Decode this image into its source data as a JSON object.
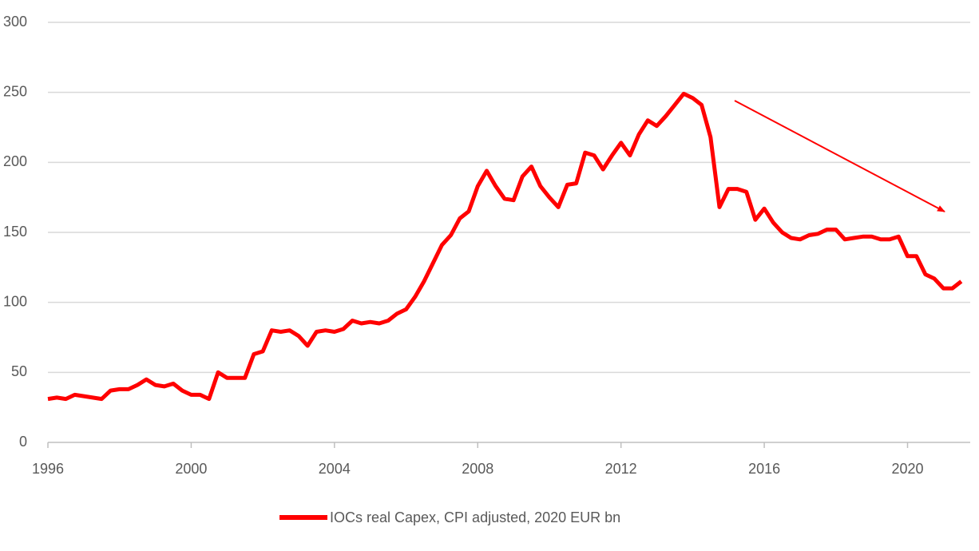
{
  "chart_data": {
    "type": "line",
    "x": [
      1996,
      1996.25,
      1996.5,
      1996.75,
      1997,
      1997.25,
      1997.5,
      1997.75,
      1998,
      1998.25,
      1998.5,
      1998.75,
      1999,
      1999.25,
      1999.5,
      1999.75,
      2000,
      2000.25,
      2000.5,
      2000.75,
      2001,
      2001.25,
      2001.5,
      2001.75,
      2002,
      2002.25,
      2002.5,
      2002.75,
      2003,
      2003.25,
      2003.5,
      2003.75,
      2004,
      2004.25,
      2004.5,
      2004.75,
      2005,
      2005.25,
      2005.5,
      2005.75,
      2006,
      2006.25,
      2006.5,
      2006.75,
      2007,
      2007.25,
      2007.5,
      2007.75,
      2008,
      2008.25,
      2008.5,
      2008.75,
      2009,
      2009.25,
      2009.5,
      2009.75,
      2010,
      2010.25,
      2010.5,
      2010.75,
      2011,
      2011.25,
      2011.5,
      2011.75,
      2012,
      2012.25,
      2012.5,
      2012.75,
      2013,
      2013.25,
      2013.5,
      2013.75,
      2014,
      2014.25,
      2014.5,
      2014.75,
      2015,
      2015.25,
      2015.5,
      2015.75,
      2016,
      2016.25,
      2016.5,
      2016.75,
      2017,
      2017.25,
      2017.5,
      2017.75,
      2018,
      2018.25,
      2018.5,
      2018.75,
      2019,
      2019.25,
      2019.5,
      2019.75,
      2020,
      2020.25,
      2020.5,
      2020.75,
      2021,
      2021.25,
      2021.5
    ],
    "series": [
      {
        "name": "IOCs real Capex, CPI adjusted, 2020 EUR bn",
        "color": "#ff0000",
        "values": [
          31,
          32,
          31,
          34,
          33,
          32,
          31,
          37,
          38,
          38,
          41,
          45,
          41,
          40,
          42,
          37,
          34,
          34,
          31,
          50,
          46,
          46,
          46,
          63,
          65,
          80,
          79,
          80,
          76,
          69,
          79,
          80,
          79,
          81,
          87,
          85,
          86,
          85,
          87,
          92,
          95,
          104,
          115,
          128,
          141,
          148,
          160,
          165,
          183,
          194,
          183,
          174,
          173,
          190,
          197,
          183,
          175,
          168,
          184,
          185,
          207,
          205,
          195,
          205,
          214,
          205,
          220,
          230,
          226,
          233,
          241,
          249,
          246,
          241,
          218,
          168,
          181,
          181,
          179,
          159,
          167,
          157,
          150,
          146,
          145,
          148,
          149,
          152,
          152,
          145,
          146,
          147,
          147,
          145,
          145,
          147,
          133,
          133,
          120,
          117,
          110,
          110,
          115
        ]
      }
    ],
    "xlim": [
      1996,
      2021.75
    ],
    "xticks": [
      1996,
      2000,
      2004,
      2008,
      2012,
      2016,
      2020
    ],
    "ylim": [
      0,
      300
    ],
    "yticks": [
      0,
      50,
      100,
      150,
      200,
      250,
      300
    ],
    "grid": true
  }
}
